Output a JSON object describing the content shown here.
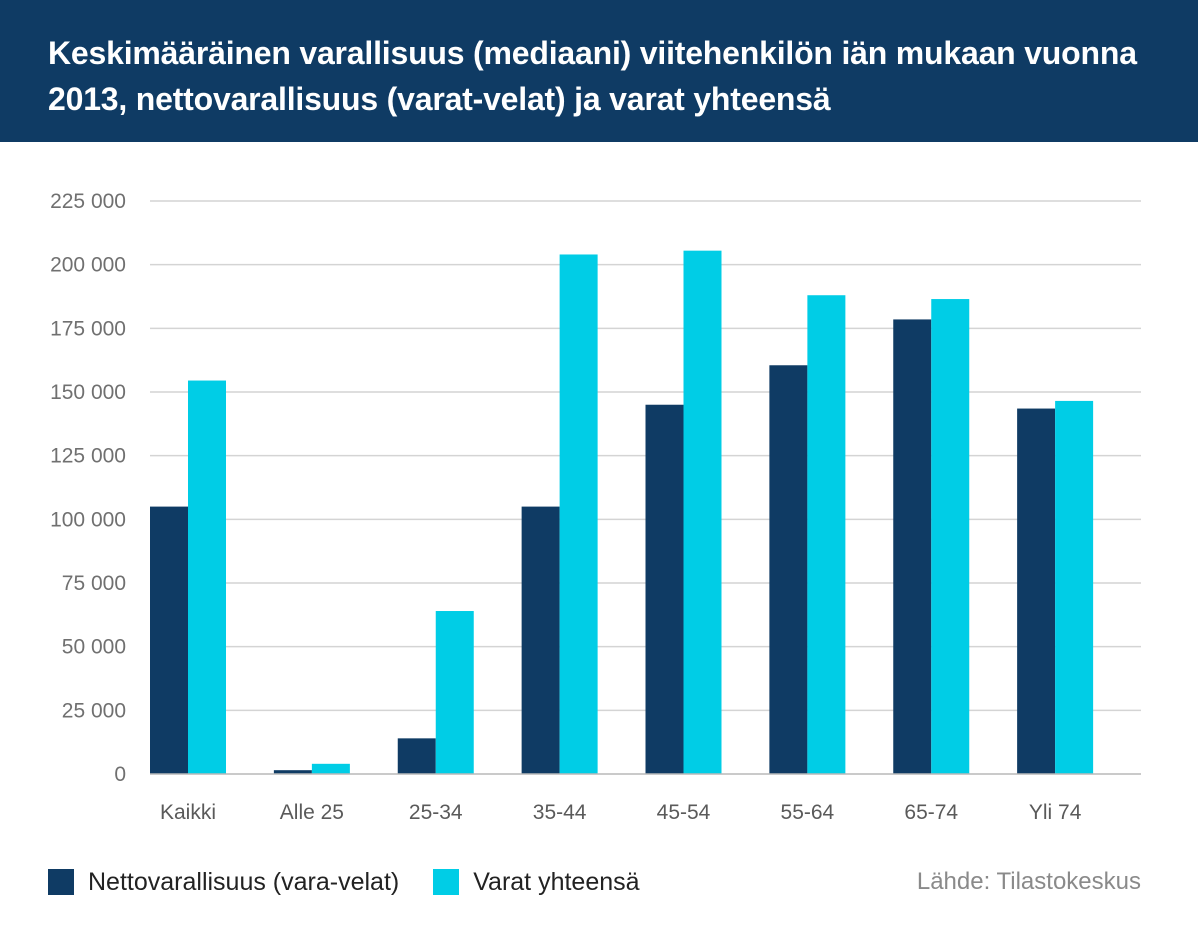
{
  "title": "Keskimääräinen varallisuus (mediaani) viitehenkilön iän mukaan vuonna 2013, nettovarallisuus (varat-velat) ja varat yhteensä",
  "source": "Lähde: Tilastokeskus",
  "colors": {
    "header_bg": "#0f3b64",
    "series_net": "#0f3b64",
    "series_assets": "#00cde6",
    "grid": "#d4d4d4"
  },
  "chart_data": {
    "type": "bar",
    "title": "Keskimääräinen varallisuus (mediaani) viitehenkilön iän mukaan vuonna 2013, nettovarallisuus (varat-velat) ja varat yhteensä",
    "xlabel": "",
    "ylabel": "",
    "categories": [
      "Kaikki",
      "Alle 25",
      "25-34",
      "35-44",
      "45-54",
      "55-64",
      "65-74",
      "Yli 74"
    ],
    "series": [
      {
        "name": "Nettovarallisuus (vara-velat)",
        "color": "#0f3b64",
        "values": [
          105000,
          1500,
          14000,
          105000,
          145000,
          160500,
          178500,
          143500
        ]
      },
      {
        "name": "Varat yhteensä",
        "color": "#00cde6",
        "values": [
          154500,
          4000,
          64000,
          204000,
          205500,
          188000,
          186500,
          146500
        ]
      }
    ],
    "ylim": [
      0,
      225000
    ],
    "yticks": [
      0,
      25000,
      50000,
      75000,
      100000,
      125000,
      150000,
      175000,
      200000,
      225000
    ],
    "ytick_labels": [
      "0",
      "25 000",
      "50 000",
      "75 000",
      "100 000",
      "125 000",
      "150 000",
      "175 000",
      "200 000",
      "225 000"
    ],
    "grid": true,
    "legend_position": "bottom-left"
  }
}
